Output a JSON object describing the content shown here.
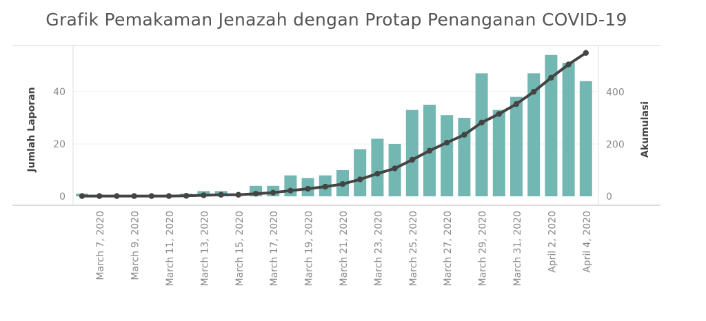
{
  "chart_data": {
    "type": "bar",
    "title": "Grafik Pemakaman Jenazah dengan Protap Penanganan COVID-19",
    "ylabel": "Jumlah Laporan",
    "y2label": "Akumulasi",
    "xlabel": "",
    "ylim": [
      0,
      57
    ],
    "y2lim": [
      0,
      600
    ],
    "yticks": [
      0,
      20,
      40
    ],
    "y2ticks": [
      0,
      200,
      400
    ],
    "grid": true,
    "x_tick_labels": [
      "March 7, 2020",
      "March 9, 2020",
      "March 11, 2020",
      "March 13, 2020",
      "March 15, 2020",
      "March 17, 2020",
      "March 19, 2020",
      "March 21, 2020",
      "March 23, 2020",
      "March 25, 2020",
      "March 27, 2020",
      "March 29, 2020",
      "March 31, 2020",
      "April 2, 2020",
      "April 4, 2020"
    ],
    "categories": [
      "March 6, 2020",
      "March 7, 2020",
      "March 8, 2020",
      "March 9, 2020",
      "March 10, 2020",
      "March 11, 2020",
      "March 12, 2020",
      "March 13, 2020",
      "March 14, 2020",
      "March 15, 2020",
      "March 16, 2020",
      "March 17, 2020",
      "March 18, 2020",
      "March 19, 2020",
      "March 20, 2020",
      "March 21, 2020",
      "March 22, 2020",
      "March 23, 2020",
      "March 24, 2020",
      "March 25, 2020",
      "March 26, 2020",
      "March 27, 2020",
      "March 28, 2020",
      "March 29, 2020",
      "March 30, 2020",
      "March 31, 2020",
      "April 1, 2020",
      "April 2, 2020",
      "April 3, 2020",
      "April 4, 2020"
    ],
    "series": [
      {
        "name": "Jumlah Laporan",
        "kind": "bar",
        "axis": "left",
        "color": "#72B7B2",
        "values": [
          1,
          0,
          0,
          0,
          0,
          0,
          1,
          2,
          2,
          0,
          4,
          4,
          8,
          7,
          8,
          10,
          18,
          22,
          20,
          33,
          35,
          31,
          30,
          47,
          33,
          38,
          47,
          54,
          51,
          44
        ]
      },
      {
        "name": "Akumulasi",
        "kind": "line",
        "axis": "right",
        "color": "#444444",
        "values": [
          1,
          1,
          1,
          1,
          1,
          1,
          2,
          4,
          6,
          6,
          10,
          14,
          22,
          29,
          37,
          47,
          65,
          87,
          107,
          140,
          175,
          206,
          236,
          283,
          316,
          354,
          401,
          455,
          506,
          550
        ]
      }
    ]
  }
}
